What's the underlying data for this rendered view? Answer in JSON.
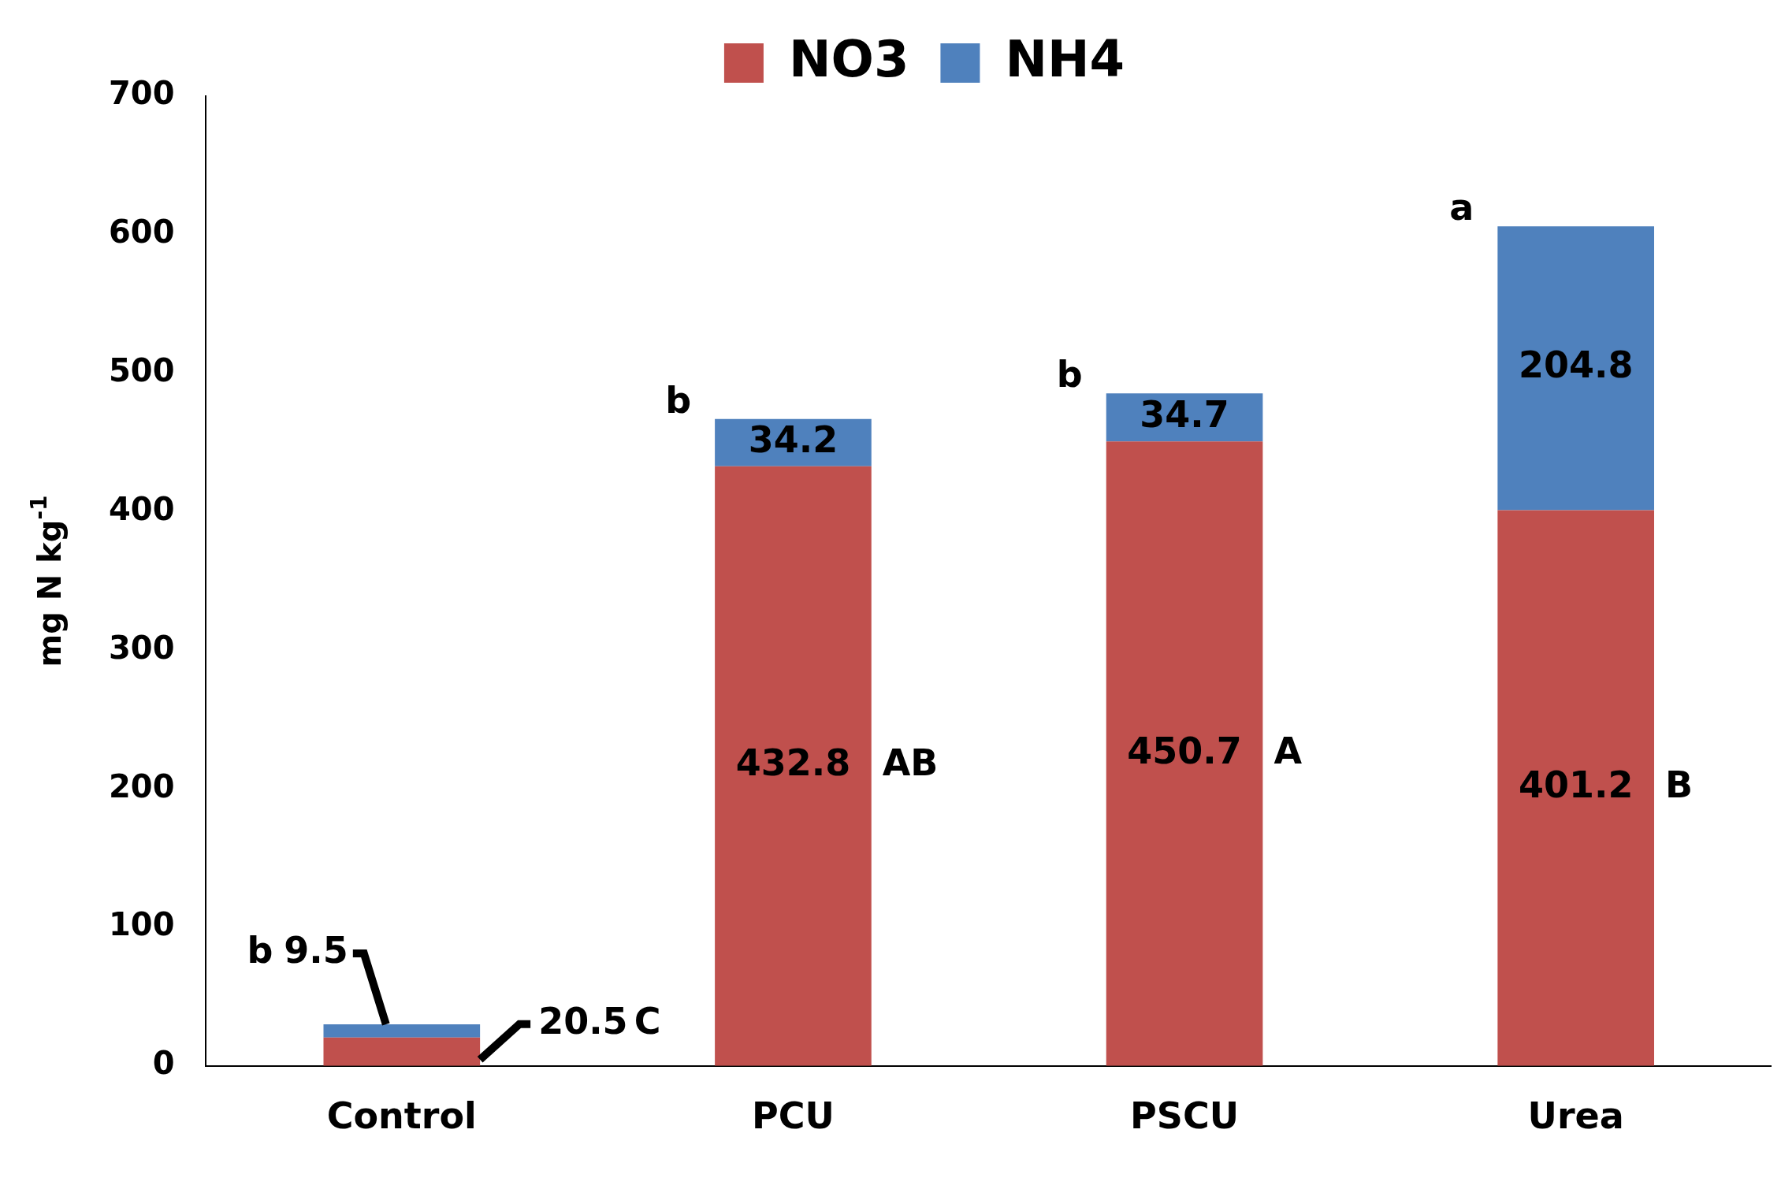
{
  "chart_data": {
    "type": "bar",
    "stacked": true,
    "ylabel": "mg N kg$^{-1}$",
    "categories": [
      "Control",
      "PCU",
      "PSCU",
      "Urea"
    ],
    "series": [
      {
        "name": "NO3",
        "color": "#c0504d",
        "values": [
          20.5,
          432.8,
          450.7,
          401.2
        ]
      },
      {
        "name": "NH4",
        "color": "#4f81bd",
        "values": [
          9.5,
          34.2,
          34.7,
          204.8
        ]
      }
    ],
    "ylim": [
      0,
      700
    ],
    "yticks": [
      0,
      100,
      200,
      300,
      400,
      500,
      600,
      700
    ],
    "grid": false,
    "legend": "top",
    "data_labels": true,
    "annotations": [
      "b",
      "C",
      "b",
      "AB",
      "b",
      "A",
      "a",
      "B"
    ]
  }
}
